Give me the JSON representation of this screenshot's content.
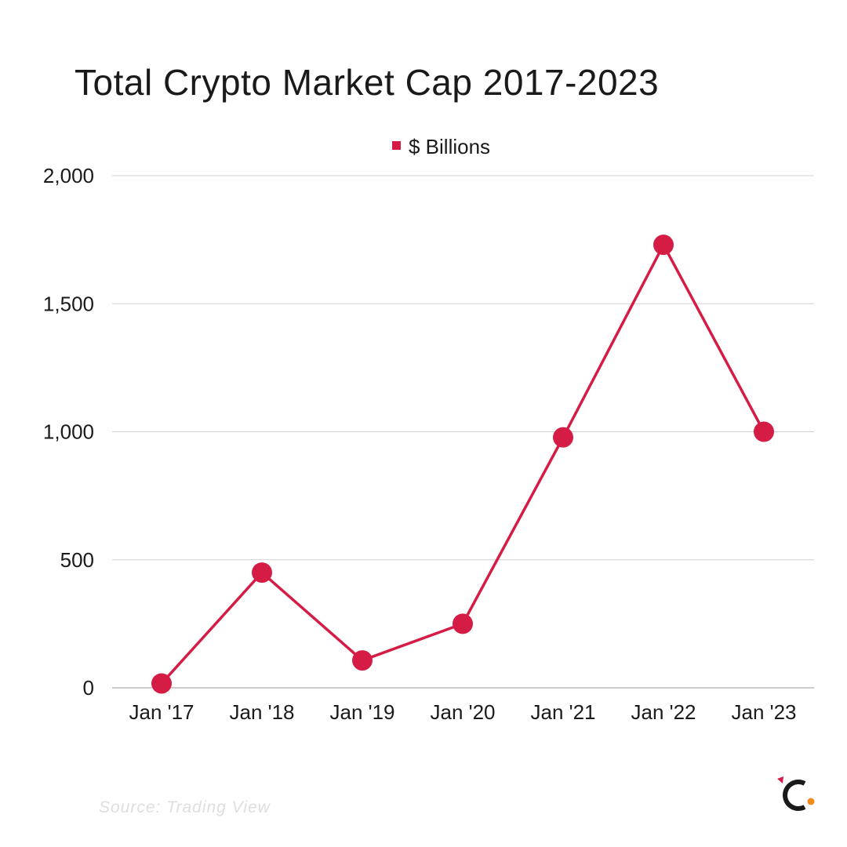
{
  "chart_data": {
    "type": "line",
    "title": "Total Crypto Market Cap 2017-2023",
    "xlabel": "",
    "ylabel": "",
    "categories": [
      "Jan '17",
      "Jan '18",
      "Jan '19",
      "Jan '20",
      "Jan '21",
      "Jan '22",
      "Jan '23"
    ],
    "series": [
      {
        "name": "$ Billions",
        "values": [
          17,
          450,
          107,
          250,
          978,
          1730,
          1000
        ]
      }
    ],
    "ylim": [
      0,
      2000
    ],
    "yticks": [
      0,
      500,
      1000,
      1500,
      2000
    ],
    "ytick_labels": [
      "0",
      "500",
      "1,000",
      "1,500",
      "2,000"
    ],
    "grid": "horizontal",
    "legend_position": "top-center"
  },
  "colors": {
    "series": "#d41c45",
    "grid": "#d0d0d0",
    "logo_dark": "#1a1a1a",
    "logo_red": "#d41c45",
    "logo_orange": "#f08c1e"
  },
  "source_note": "Source: Trading View",
  "logo": {
    "icon": "brand-c-logo"
  }
}
